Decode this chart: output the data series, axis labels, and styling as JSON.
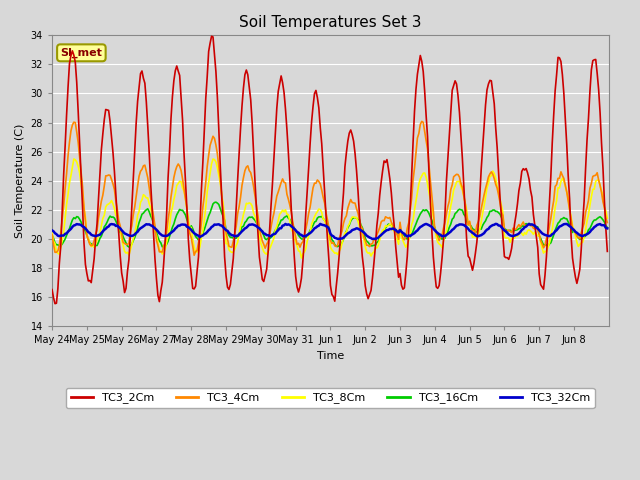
{
  "title": "Soil Temperatures Set 3",
  "ylabel": "Soil Temperature (C)",
  "xlabel": "Time",
  "ylim": [
    14,
    34
  ],
  "background_color": "#d8d8d8",
  "series": {
    "TC3_2Cm": {
      "color": "#cc0000",
      "lw": 1.2
    },
    "TC3_4Cm": {
      "color": "#ff8800",
      "lw": 1.2
    },
    "TC3_8Cm": {
      "color": "#ffff00",
      "lw": 1.2
    },
    "TC3_16Cm": {
      "color": "#00cc00",
      "lw": 1.2
    },
    "TC3_32Cm": {
      "color": "#0000cc",
      "lw": 1.8
    }
  },
  "xtick_labels": [
    "May 24",
    "May 25",
    "May 26",
    "May 27",
    "May 28",
    "May 29",
    "May 30",
    "May 31",
    "Jun 1",
    "Jun 2",
    "Jun 3",
    "Jun 4",
    "Jun 5",
    "Jun 6",
    "Jun 7",
    "Jun 8"
  ],
  "si_met_label": "SI_met",
  "annotation_color": "#880000",
  "annotation_bg": "#ffff99",
  "annotation_border": "#999900",
  "peak_2cm": [
    33.0,
    29.0,
    31.5,
    32.0,
    34.0,
    31.5,
    31.0,
    30.0,
    27.5,
    25.5,
    32.5,
    31.0,
    31.0,
    25.0,
    32.5,
    32.5
  ],
  "min_2cm": [
    15.5,
    17.0,
    16.5,
    16.0,
    16.5,
    16.5,
    17.0,
    16.5,
    16.0,
    16.0,
    16.5,
    16.5,
    18.0,
    18.5,
    16.5,
    17.0
  ],
  "peak_4cm": [
    28.0,
    24.5,
    25.0,
    25.0,
    27.0,
    25.0,
    24.0,
    24.0,
    22.5,
    21.5,
    28.0,
    24.5,
    24.5,
    21.0,
    24.5,
    24.5
  ],
  "min_4cm": [
    19.0,
    19.5,
    19.5,
    19.0,
    19.0,
    19.5,
    19.5,
    19.5,
    19.5,
    19.5,
    20.0,
    20.0,
    20.5,
    20.5,
    19.5,
    20.0
  ],
  "peak_8cm": [
    25.5,
    22.5,
    23.0,
    24.0,
    25.5,
    22.5,
    22.0,
    22.0,
    21.5,
    21.0,
    24.5,
    24.0,
    24.5,
    20.5,
    24.0,
    24.0
  ],
  "min_8cm": [
    19.0,
    19.5,
    19.0,
    19.0,
    19.0,
    19.0,
    19.0,
    19.0,
    19.0,
    19.0,
    19.5,
    19.5,
    20.0,
    20.0,
    19.0,
    19.5
  ],
  "peak_16cm": [
    21.5,
    21.5,
    22.0,
    22.0,
    22.5,
    21.5,
    21.5,
    21.5,
    21.5,
    21.0,
    22.0,
    22.0,
    22.0,
    21.0,
    21.5,
    21.5
  ],
  "min_16cm": [
    19.5,
    19.5,
    19.5,
    19.5,
    20.0,
    20.0,
    20.0,
    20.0,
    19.5,
    19.5,
    20.0,
    20.0,
    20.5,
    20.5,
    19.5,
    20.0
  ],
  "peak_32cm": [
    21.0,
    21.0,
    21.0,
    21.0,
    21.0,
    21.0,
    21.0,
    21.0,
    20.7,
    20.7,
    21.0,
    21.0,
    21.0,
    21.0,
    21.0,
    21.0
  ],
  "min_32cm": [
    20.2,
    20.2,
    20.2,
    20.2,
    20.2,
    20.2,
    20.2,
    20.2,
    20.0,
    20.0,
    20.2,
    20.2,
    20.2,
    20.2,
    20.2,
    20.2
  ]
}
